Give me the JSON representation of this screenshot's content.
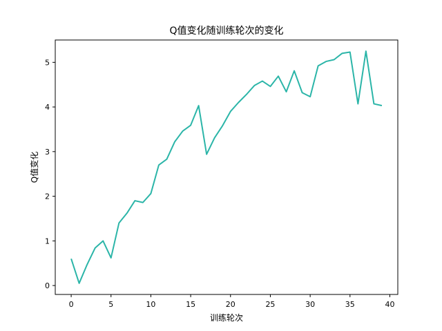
{
  "chart_data": {
    "type": "line",
    "title": "Q值变化随训练轮次的变化",
    "xlabel": "训练轮次",
    "ylabel": "Q值变化",
    "xlim": [
      -2.0,
      41.0
    ],
    "ylim": [
      -0.2,
      5.5
    ],
    "xticks": [
      0,
      5,
      10,
      15,
      20,
      25,
      30,
      35,
      40
    ],
    "yticks": [
      0,
      1,
      2,
      3,
      4,
      5
    ],
    "grid": false,
    "series": [
      {
        "color": "#2bb5a8",
        "x": [
          0,
          1,
          2,
          3,
          4,
          5,
          6,
          7,
          8,
          9,
          10,
          11,
          12,
          13,
          14,
          15,
          16,
          17,
          18,
          19,
          20,
          21,
          22,
          23,
          24,
          25,
          26,
          27,
          28,
          29,
          30,
          31,
          32,
          33,
          34,
          35,
          36,
          37,
          38,
          39
        ],
        "y": [
          0.6,
          0.05,
          0.47,
          0.84,
          1.0,
          0.62,
          1.4,
          1.62,
          1.9,
          1.86,
          2.06,
          2.7,
          2.83,
          3.22,
          3.46,
          3.59,
          4.03,
          2.94,
          3.31,
          3.58,
          3.9,
          4.1,
          4.28,
          4.48,
          4.58,
          4.46,
          4.69,
          4.34,
          4.81,
          4.32,
          4.23,
          4.92,
          5.02,
          5.06,
          5.2,
          5.23,
          4.07,
          5.25,
          4.07,
          4.03
        ]
      }
    ]
  }
}
